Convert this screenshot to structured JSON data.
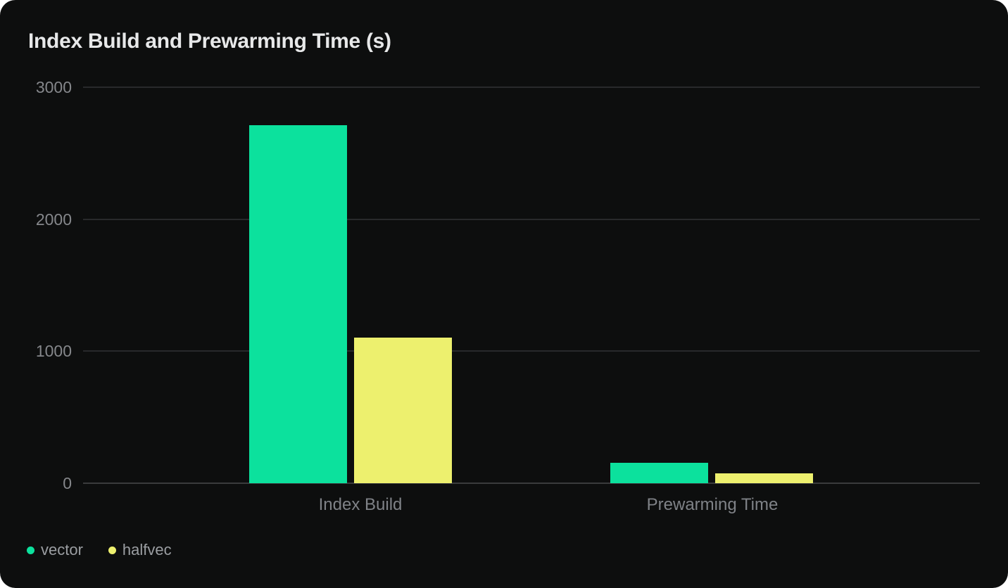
{
  "chart_data": {
    "type": "bar",
    "title": "Index Build and Prewarming Time (s)",
    "categories": [
      "Index Build",
      "Prewarming Time"
    ],
    "series": [
      {
        "name": "vector",
        "color": "#0ce19d",
        "values": [
          2712,
          155
        ]
      },
      {
        "name": "halfvec",
        "color": "#edf06e",
        "values": [
          1103,
          75
        ]
      }
    ],
    "xlabel": "",
    "ylabel": "",
    "ylim": [
      0,
      3000
    ],
    "yticks": [
      0,
      1000,
      2000,
      3000
    ],
    "grid": true,
    "legend_position": "bottom-left"
  },
  "colors": {
    "card_background": "#0d0e0e",
    "page_background": "#ffffff",
    "gridline": "#28292b",
    "zero_line": "#3a3b3d",
    "tick_label": "#85878b",
    "category_label": "#7f8287",
    "legend_label": "#9b9ea2",
    "title": "#e7e8e9"
  }
}
